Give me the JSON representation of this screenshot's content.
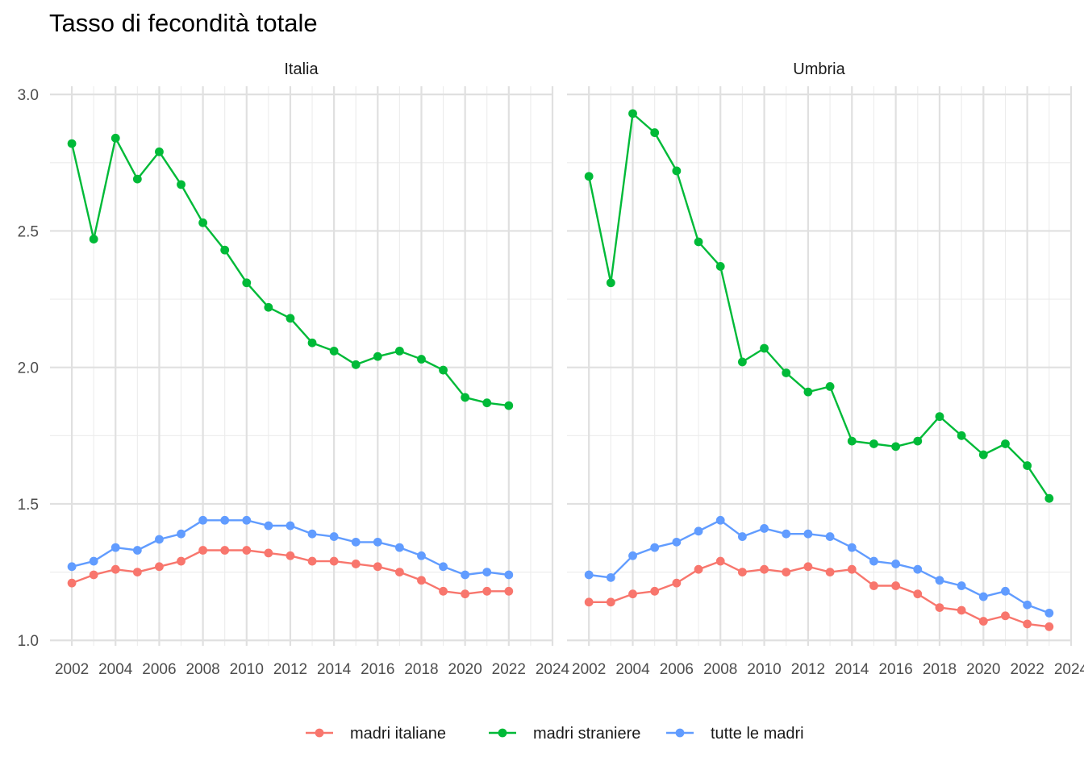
{
  "chart_data": {
    "type": "line",
    "title": "Tasso di fecondità totale",
    "xlabel": "",
    "ylabel": "",
    "x_ticks": [
      "2002",
      "2004",
      "2006",
      "2008",
      "2010",
      "2012",
      "2014",
      "2016",
      "2018",
      "2020",
      "2022",
      "2024"
    ],
    "y_ticks": [
      "1.0",
      "1.5",
      "2.0",
      "2.5",
      "3.0"
    ],
    "xlim": [
      2001,
      2024
    ],
    "ylim": [
      0.98,
      3.03
    ],
    "grid": true,
    "legend_position": "bottom",
    "colors": {
      "madri italiane": "#F8766D",
      "madri straniere": "#00BA38",
      "tutte le madri": "#619CFF"
    },
    "panels": [
      {
        "title": "Italia",
        "x": [
          2002,
          2003,
          2004,
          2005,
          2006,
          2007,
          2008,
          2009,
          2010,
          2011,
          2012,
          2013,
          2014,
          2015,
          2016,
          2017,
          2018,
          2019,
          2020,
          2021,
          2022
        ],
        "series": [
          {
            "name": "madri italiane",
            "values": [
              1.21,
              1.24,
              1.26,
              1.25,
              1.27,
              1.29,
              1.33,
              1.33,
              1.33,
              1.32,
              1.31,
              1.29,
              1.29,
              1.28,
              1.27,
              1.25,
              1.22,
              1.18,
              1.17,
              1.18,
              1.18
            ]
          },
          {
            "name": "madri straniere",
            "values": [
              2.82,
              2.47,
              2.84,
              2.69,
              2.79,
              2.67,
              2.53,
              2.43,
              2.31,
              2.22,
              2.18,
              2.09,
              2.06,
              2.01,
              2.04,
              2.06,
              2.03,
              1.99,
              1.89,
              1.87,
              1.86
            ]
          },
          {
            "name": "tutte le madri",
            "values": [
              1.27,
              1.29,
              1.34,
              1.33,
              1.37,
              1.39,
              1.44,
              1.44,
              1.44,
              1.42,
              1.42,
              1.39,
              1.38,
              1.36,
              1.36,
              1.34,
              1.31,
              1.27,
              1.24,
              1.25,
              1.24
            ]
          }
        ]
      },
      {
        "title": "Umbria",
        "x": [
          2002,
          2003,
          2004,
          2005,
          2006,
          2007,
          2008,
          2009,
          2010,
          2011,
          2012,
          2013,
          2014,
          2015,
          2016,
          2017,
          2018,
          2019,
          2020,
          2021,
          2022,
          2023
        ],
        "series": [
          {
            "name": "madri italiane",
            "values": [
              1.14,
              1.14,
              1.17,
              1.18,
              1.21,
              1.26,
              1.29,
              1.25,
              1.26,
              1.25,
              1.27,
              1.25,
              1.26,
              1.2,
              1.2,
              1.17,
              1.12,
              1.11,
              1.07,
              1.09,
              1.06,
              1.05
            ]
          },
          {
            "name": "madri straniere",
            "values": [
              2.7,
              2.31,
              2.93,
              2.86,
              2.72,
              2.46,
              2.37,
              2.02,
              2.07,
              1.98,
              1.91,
              1.93,
              1.73,
              1.72,
              1.71,
              1.73,
              1.82,
              1.75,
              1.68,
              1.72,
              1.64,
              1.52
            ]
          },
          {
            "name": "tutte le madri",
            "values": [
              1.24,
              1.23,
              1.31,
              1.34,
              1.36,
              1.4,
              1.44,
              1.38,
              1.41,
              1.39,
              1.39,
              1.38,
              1.34,
              1.29,
              1.28,
              1.26,
              1.22,
              1.2,
              1.16,
              1.18,
              1.13,
              1.1
            ]
          }
        ]
      }
    ]
  }
}
